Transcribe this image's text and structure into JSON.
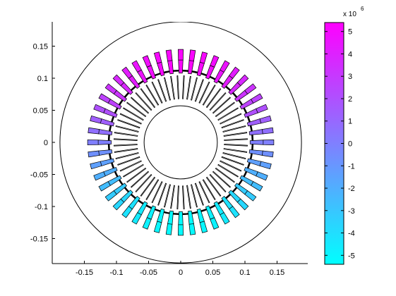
{
  "chart_data": {
    "type": "heatmap",
    "title": "",
    "xlabel": "",
    "ylabel": "",
    "xlim": [
      -0.2,
      0.2
    ],
    "ylim": [
      -0.19,
      0.19
    ],
    "x_ticks": [
      "-0.15",
      "-0.1",
      "-0.05",
      "0",
      "0.05",
      "0.1",
      "0.15"
    ],
    "x_tick_values": [
      -0.15,
      -0.1,
      -0.05,
      0,
      0.05,
      0.1,
      0.15
    ],
    "y_ticks": [
      "0.15",
      "0.1",
      "0.05",
      "0",
      "-0.05",
      "-0.1",
      "-0.15"
    ],
    "y_tick_values": [
      0.15,
      0.1,
      0.05,
      0,
      -0.05,
      -0.1,
      -0.15
    ],
    "geometry": {
      "outer_radius": 0.188,
      "airgap_radius": 0.112,
      "rotor_bore_radius": 0.057,
      "stator_slots": 48,
      "slot_inner_radius": 0.104,
      "slot_outer_radius": 0.145,
      "rotor_slots": 64,
      "rotor_slot_inner_radius": 0.068,
      "rotor_slot_outer_radius": 0.104
    },
    "current_density_pattern": "cos(theta - 90deg) per slot, magnitude scaled to colorbar range",
    "colorbar": {
      "min": -5.4,
      "max": 5.4,
      "ticks": [
        "5",
        "4",
        "3",
        "2",
        "1",
        "0",
        "-1",
        "-2",
        "-3",
        "-4",
        "-5"
      ],
      "tick_values": [
        5,
        4,
        3,
        2,
        1,
        0,
        -1,
        -2,
        -3,
        -4,
        -5
      ],
      "multiplier_base": "x 10",
      "multiplier_exp": "6",
      "color_low": "#00ffff",
      "color_high": "#ff00ff"
    }
  }
}
